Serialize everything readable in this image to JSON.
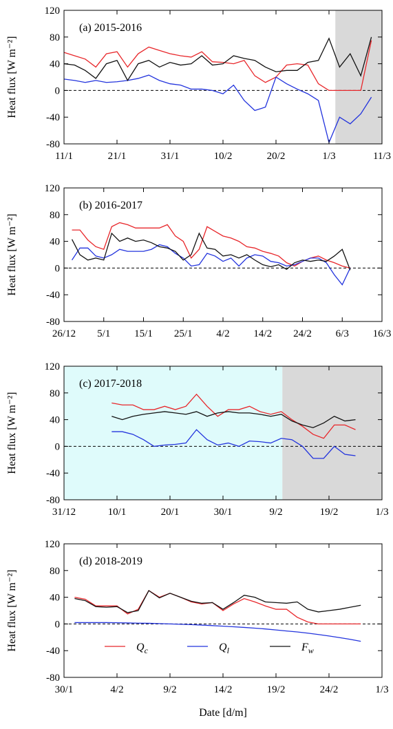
{
  "chart_data": [
    {
      "type": "line",
      "title": "(a) 2015-2016",
      "ylabel": "Heat flux [W m⁻²]",
      "xlim": [
        0,
        60
      ],
      "xticks": [
        {
          "value": 0,
          "label": "11/1"
        },
        {
          "value": 10,
          "label": "21/1"
        },
        {
          "value": 20,
          "label": "31/1"
        },
        {
          "value": 30,
          "label": "10/2"
        },
        {
          "value": 40,
          "label": "20/2"
        },
        {
          "value": 50,
          "label": "1/3"
        },
        {
          "value": 60,
          "label": "11/3"
        }
      ],
      "ylim": [
        -80,
        120
      ],
      "yticks": [
        -80,
        -40,
        0,
        40,
        80,
        120
      ],
      "reference_line": 0,
      "shading": [
        {
          "start": 51.2,
          "end": 60,
          "color": "#d9d9d9"
        }
      ],
      "x": [
        0,
        2,
        4,
        6,
        8,
        10,
        12,
        14,
        16,
        18,
        20,
        22,
        24,
        26,
        28,
        30,
        32,
        34,
        36,
        38,
        40,
        42,
        44,
        46,
        48,
        50,
        52,
        54,
        56,
        58
      ],
      "series": [
        {
          "name": "Qc",
          "color": "#e8262a",
          "values": [
            57,
            52,
            47,
            35,
            55,
            58,
            35,
            55,
            65,
            60,
            55,
            52,
            50,
            58,
            43,
            42,
            40,
            45,
            22,
            12,
            20,
            38,
            40,
            38,
            10,
            0,
            0,
            0,
            0,
            75
          ]
        },
        {
          "name": "Ql",
          "color": "#2233dd",
          "values": [
            17,
            15,
            12,
            15,
            12,
            13,
            15,
            18,
            23,
            15,
            10,
            8,
            2,
            2,
            0,
            -5,
            8,
            -15,
            -30,
            -25,
            20,
            10,
            2,
            -5,
            -15,
            -78,
            -40,
            -50,
            -35,
            -10
          ]
        },
        {
          "name": "Fw",
          "color": "#111111",
          "values": [
            40,
            38,
            30,
            18,
            40,
            45,
            15,
            40,
            45,
            35,
            42,
            38,
            40,
            52,
            38,
            40,
            52,
            48,
            45,
            35,
            28,
            30,
            30,
            42,
            45,
            78,
            35,
            55,
            22,
            80
          ]
        }
      ]
    },
    {
      "type": "line",
      "title": "(b) 2016-2017",
      "ylabel": "Heat flux [W m⁻²]",
      "xlim": [
        0,
        80
      ],
      "xticks": [
        {
          "value": 0,
          "label": "26/12"
        },
        {
          "value": 10,
          "label": "5/1"
        },
        {
          "value": 20,
          "label": "15/1"
        },
        {
          "value": 30,
          "label": "25/1"
        },
        {
          "value": 40,
          "label": "4/2"
        },
        {
          "value": 50,
          "label": "14/2"
        },
        {
          "value": 60,
          "label": "24/2"
        },
        {
          "value": 70,
          "label": "6/3"
        },
        {
          "value": 80,
          "label": "16/3"
        }
      ],
      "ylim": [
        -80,
        120
      ],
      "yticks": [
        -80,
        -40,
        0,
        40,
        80,
        120
      ],
      "reference_line": 0,
      "shading": [],
      "x": [
        2,
        4,
        6,
        8,
        10,
        12,
        14,
        16,
        18,
        20,
        22,
        24,
        26,
        28,
        30,
        32,
        34,
        36,
        38,
        40,
        42,
        44,
        46,
        48,
        50,
        52,
        54,
        56,
        58,
        60,
        62,
        64,
        66,
        68,
        70,
        72
      ],
      "series": [
        {
          "name": "Qc",
          "color": "#e8262a",
          "values": [
            57,
            57,
            42,
            32,
            28,
            62,
            68,
            65,
            60,
            60,
            60,
            60,
            65,
            48,
            40,
            15,
            28,
            62,
            55,
            48,
            45,
            40,
            32,
            30,
            25,
            22,
            18,
            8,
            3,
            10,
            15,
            18,
            12,
            8,
            3,
            0
          ]
        },
        {
          "name": "Ql",
          "color": "#2233dd",
          "values": [
            12,
            30,
            30,
            18,
            15,
            20,
            28,
            25,
            25,
            25,
            28,
            35,
            32,
            22,
            15,
            3,
            5,
            22,
            18,
            10,
            15,
            3,
            15,
            20,
            18,
            10,
            8,
            3,
            5,
            10,
            15,
            15,
            8,
            -10,
            -25,
            0
          ]
        },
        {
          "name": "Fw",
          "color": "#111111",
          "values": [
            43,
            20,
            12,
            15,
            12,
            52,
            40,
            45,
            40,
            42,
            38,
            32,
            30,
            25,
            12,
            20,
            52,
            30,
            28,
            18,
            20,
            15,
            20,
            12,
            5,
            2,
            5,
            -2,
            8,
            12,
            10,
            12,
            10,
            18,
            28,
            -3
          ]
        }
      ]
    },
    {
      "type": "line",
      "title": "(c) 2017-2018",
      "ylabel": "Heat flux [W m⁻²]",
      "xlim": [
        0,
        60
      ],
      "xticks": [
        {
          "value": 0,
          "label": "31/12"
        },
        {
          "value": 10,
          "label": "10/1"
        },
        {
          "value": 20,
          "label": "20/1"
        },
        {
          "value": 30,
          "label": "30/1"
        },
        {
          "value": 40,
          "label": "9/2"
        },
        {
          "value": 50,
          "label": "19/2"
        },
        {
          "value": 60,
          "label": "1/3"
        }
      ],
      "ylim": [
        -80,
        120
      ],
      "yticks": [
        -80,
        -40,
        0,
        40,
        80,
        120
      ],
      "reference_line": 0,
      "shading": [
        {
          "start": 0,
          "end": 41.2,
          "color": "#dffbfb"
        },
        {
          "start": 41.2,
          "end": 60,
          "color": "#d9d9d9"
        }
      ],
      "x": [
        9,
        11,
        13,
        15,
        17,
        19,
        21,
        23,
        25,
        27,
        29,
        31,
        33,
        35,
        37,
        39,
        41,
        43,
        45,
        47,
        49,
        51,
        53,
        55
      ],
      "series": [
        {
          "name": "Qc",
          "color": "#e8262a",
          "values": [
            65,
            62,
            62,
            55,
            55,
            60,
            55,
            60,
            78,
            60,
            45,
            55,
            55,
            60,
            52,
            48,
            52,
            40,
            30,
            18,
            12,
            32,
            32,
            25
          ]
        },
        {
          "name": "Ql",
          "color": "#2233dd",
          "values": [
            22,
            22,
            18,
            10,
            0,
            2,
            3,
            5,
            25,
            10,
            2,
            5,
            0,
            8,
            7,
            5,
            12,
            10,
            0,
            -18,
            -18,
            0,
            -12,
            -14
          ]
        },
        {
          "name": "Fw",
          "color": "#111111",
          "values": [
            45,
            40,
            45,
            48,
            50,
            52,
            50,
            48,
            52,
            45,
            50,
            52,
            50,
            50,
            48,
            45,
            48,
            38,
            32,
            28,
            35,
            45,
            38,
            40
          ]
        }
      ]
    },
    {
      "type": "line",
      "title": "(d) 2018-2019",
      "ylabel": "Heat flux [W m⁻²]",
      "xlabel": "Date [d/m]",
      "legend": "lower center",
      "xlim": [
        0,
        30
      ],
      "xticks": [
        {
          "value": 0,
          "label": "30/1"
        },
        {
          "value": 5,
          "label": "4/2"
        },
        {
          "value": 10,
          "label": "9/2"
        },
        {
          "value": 15,
          "label": "14/2"
        },
        {
          "value": 20,
          "label": "19/2"
        },
        {
          "value": 25,
          "label": "24/2"
        },
        {
          "value": 30,
          "label": "1/3"
        }
      ],
      "ylim": [
        -80,
        120
      ],
      "yticks": [
        -80,
        -40,
        0,
        40,
        80,
        120
      ],
      "reference_line": 0,
      "shading": [],
      "x": [
        1,
        2,
        3,
        4,
        5,
        6,
        7,
        8,
        9,
        10,
        11,
        12,
        13,
        14,
        15,
        16,
        17,
        18,
        19,
        20,
        21,
        22,
        23,
        24,
        25,
        26,
        27,
        28
      ],
      "series": [
        {
          "name": "Qc",
          "color": "#e8262a",
          "values": [
            40,
            37,
            27,
            27,
            27,
            15,
            22,
            50,
            40,
            46,
            40,
            33,
            30,
            32,
            20,
            30,
            38,
            33,
            27,
            22,
            22,
            10,
            3,
            0,
            0,
            0,
            0,
            0
          ]
        },
        {
          "name": "Ql",
          "color": "#2233dd",
          "values": [
            2,
            2,
            2,
            2,
            1.8,
            1.5,
            1.2,
            1,
            0.5,
            0,
            -0.5,
            -1,
            -1.7,
            -2.5,
            -3.3,
            -4.2,
            -5.2,
            -6.3,
            -7.5,
            -9,
            -10.5,
            -12,
            -13.8,
            -15.8,
            -18,
            -20.5,
            -23,
            -26
          ]
        },
        {
          "name": "Fw",
          "color": "#111111",
          "values": [
            38,
            35,
            26,
            25,
            26,
            17,
            20,
            50,
            39,
            46,
            40,
            34,
            31,
            32,
            22,
            32,
            43,
            40,
            33,
            32,
            31,
            33,
            22,
            18,
            20,
            22,
            25,
            28
          ]
        }
      ]
    }
  ]
}
